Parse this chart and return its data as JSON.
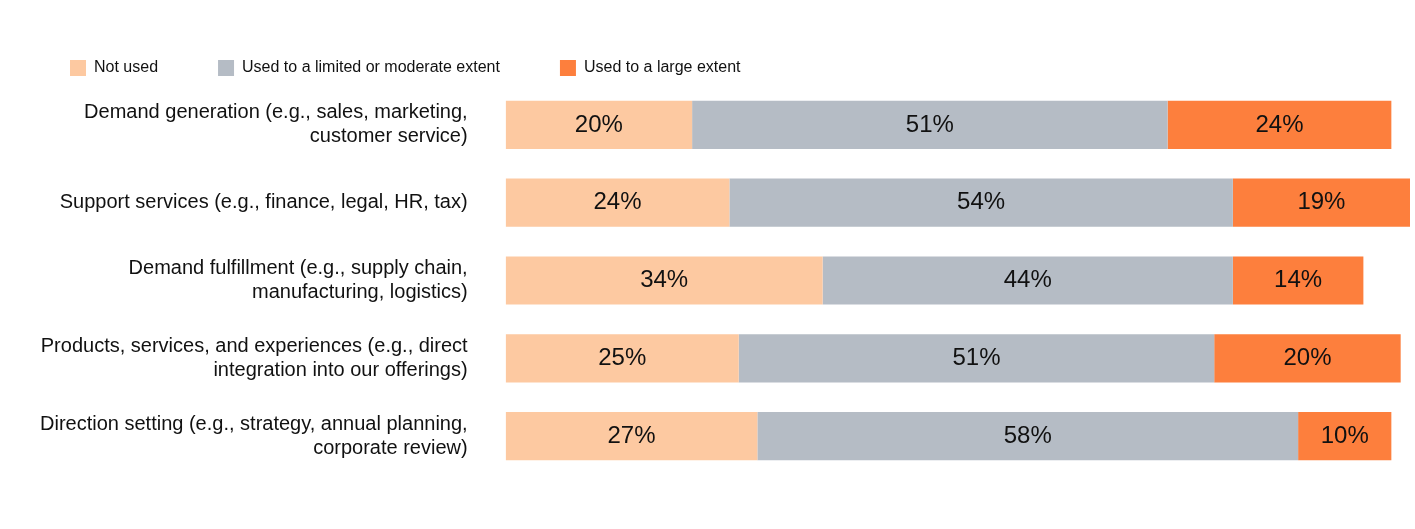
{
  "chart_data": {
    "type": "bar",
    "orientation": "horizontal",
    "stacked": true,
    "tick_labels": "y",
    "legend": "top left",
    "categories": [
      "Demand generation (e.g., sales, marketing, customer service)",
      "Support services (e.g., finance, legal, HR, tax)",
      "Demand fulfillment (e.g., supply chain, manufacturing, logistics)",
      "Products, services, and experiences (e.g., direct integration into our offerings)",
      "Direction setting (e.g., strategy, annual planning, corporate review)"
    ],
    "series": [
      {
        "name": "Not used",
        "color": "#fdc9a1",
        "values": [
          20,
          24,
          34,
          25,
          27
        ],
        "value_labels": [
          "20%",
          "24%",
          "34%",
          "25%",
          "27%"
        ]
      },
      {
        "name": "Used to a limited or moderate extent",
        "color": "#b5bcc5",
        "values": [
          51,
          54,
          44,
          51,
          58
        ],
        "value_labels": [
          "51%",
          "54%",
          "44%",
          "51%",
          "58%"
        ]
      },
      {
        "name": "Used to a large extent",
        "color": "#fd7f3d",
        "values": [
          24,
          19,
          14,
          20,
          10
        ],
        "value_labels": [
          "24%",
          "19%",
          "14%",
          "20%",
          "10%"
        ]
      }
    ]
  }
}
